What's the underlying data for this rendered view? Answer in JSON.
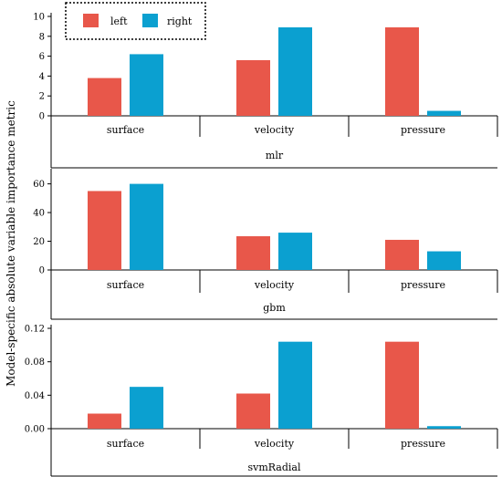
{
  "chart_data": {
    "type": "bar",
    "ylabel": "Model-specific absolute variable importance metric",
    "legend": {
      "placement": "top-left",
      "entries": [
        {
          "name": "left",
          "color": "#E8574A"
        },
        {
          "name": "right",
          "color": "#0BA0D0"
        }
      ]
    },
    "panels": [
      {
        "title": "mlr",
        "categories": [
          "surface",
          "velocity",
          "pressure"
        ],
        "ylim": [
          0,
          10
        ],
        "yticks": [
          0,
          2,
          4,
          6,
          8,
          10
        ],
        "ytick_labels": [
          "0",
          "2",
          "4",
          "6",
          "8",
          "10"
        ],
        "series": [
          {
            "name": "left",
            "values": [
              3.8,
              5.6,
              8.9
            ]
          },
          {
            "name": "right",
            "values": [
              6.2,
              8.9,
              0.5
            ]
          }
        ]
      },
      {
        "title": "gbm",
        "categories": [
          "surface",
          "velocity",
          "pressure"
        ],
        "ylim": [
          0,
          68
        ],
        "yticks": [
          0,
          20,
          40,
          60
        ],
        "ytick_labels": [
          "0",
          "20",
          "40",
          "60"
        ],
        "series": [
          {
            "name": "left",
            "values": [
              55,
              23.5,
              21
            ]
          },
          {
            "name": "right",
            "values": [
              60,
              26,
              13
            ]
          }
        ]
      },
      {
        "title": "svmRadial",
        "categories": [
          "surface",
          "velocity",
          "pressure"
        ],
        "ylim": [
          0,
          0.12
        ],
        "yticks": [
          0,
          0.04,
          0.08,
          0.12
        ],
        "ytick_labels": [
          "0.00",
          "0.04",
          "0.08",
          "0.12"
        ],
        "series": [
          {
            "name": "left",
            "values": [
              0.018,
              0.042,
              0.104
            ]
          },
          {
            "name": "right",
            "values": [
              0.05,
              0.104,
              0.003
            ]
          }
        ]
      }
    ]
  }
}
